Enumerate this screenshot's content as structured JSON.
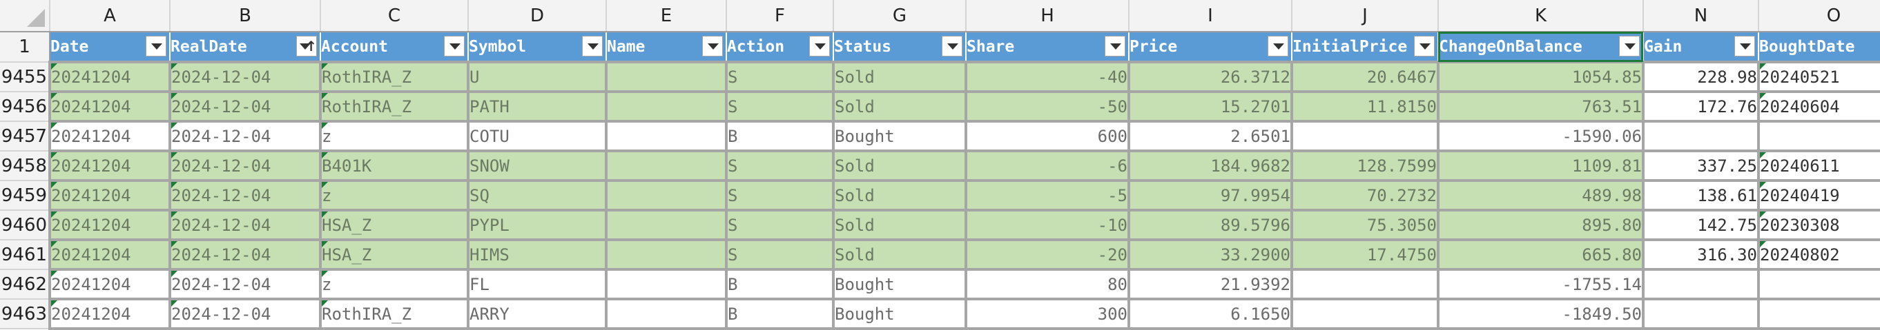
{
  "corner_label": "",
  "column_letters": [
    "A",
    "B",
    "C",
    "D",
    "E",
    "F",
    "G",
    "H",
    "I",
    "J",
    "K",
    "N",
    "O"
  ],
  "header_row_number": "1",
  "headers": [
    "Date",
    "RealDate",
    "Account",
    "Symbol",
    "Name",
    "Action",
    "Status",
    "Share",
    "Price",
    "InitialPrice",
    "ChangeOnBalance",
    "Gain",
    "BoughtDate"
  ],
  "sort_indicator": "↑",
  "rows": [
    {
      "n": "9455",
      "type": "sold",
      "cells": [
        "20241204",
        "2024-12-04",
        "RothIRA_Z",
        "U",
        "",
        "S",
        "Sold",
        "-40",
        "26.3712",
        "20.6467",
        "1054.85",
        "228.98",
        "20240521"
      ]
    },
    {
      "n": "9456",
      "type": "sold",
      "cells": [
        "20241204",
        "2024-12-04",
        "RothIRA_Z",
        "PATH",
        "",
        "S",
        "Sold",
        "-50",
        "15.2701",
        "11.8150",
        "763.51",
        "172.76",
        "20240604"
      ]
    },
    {
      "n": "9457",
      "type": "bought",
      "cells": [
        "20241204",
        "2024-12-04",
        "z",
        "COTU",
        "",
        "B",
        "Bought",
        "600",
        "2.6501",
        "",
        "-1590.06",
        "",
        ""
      ]
    },
    {
      "n": "9458",
      "type": "sold",
      "cells": [
        "20241204",
        "2024-12-04",
        "B401K",
        "SNOW",
        "",
        "S",
        "Sold",
        "-6",
        "184.9682",
        "128.7599",
        "1109.81",
        "337.25",
        "20240611"
      ]
    },
    {
      "n": "9459",
      "type": "sold",
      "cells": [
        "20241204",
        "2024-12-04",
        "z",
        "SQ",
        "",
        "S",
        "Sold",
        "-5",
        "97.9954",
        "70.2732",
        "489.98",
        "138.61",
        "20240419"
      ]
    },
    {
      "n": "9460",
      "type": "sold",
      "cells": [
        "20241204",
        "2024-12-04",
        "HSA_Z",
        "PYPL",
        "",
        "S",
        "Sold",
        "-10",
        "89.5796",
        "75.3050",
        "895.80",
        "142.75",
        "20230308"
      ]
    },
    {
      "n": "9461",
      "type": "sold",
      "cells": [
        "20241204",
        "2024-12-04",
        "HSA_Z",
        "HIMS",
        "",
        "S",
        "Sold",
        "-20",
        "33.2900",
        "17.4750",
        "665.80",
        "316.30",
        "20240802"
      ]
    },
    {
      "n": "9462",
      "type": "bought",
      "cells": [
        "20241204",
        "2024-12-04",
        "z",
        "FL",
        "",
        "B",
        "Bought",
        "80",
        "21.9392",
        "",
        "-1755.14",
        "",
        ""
      ]
    },
    {
      "n": "9463",
      "type": "bought",
      "cells": [
        "20241204",
        "2024-12-04",
        "RothIRA_Z",
        "ARRY",
        "",
        "B",
        "Bought",
        "300",
        "6.1650",
        "",
        "-1849.50",
        "",
        ""
      ]
    }
  ]
}
